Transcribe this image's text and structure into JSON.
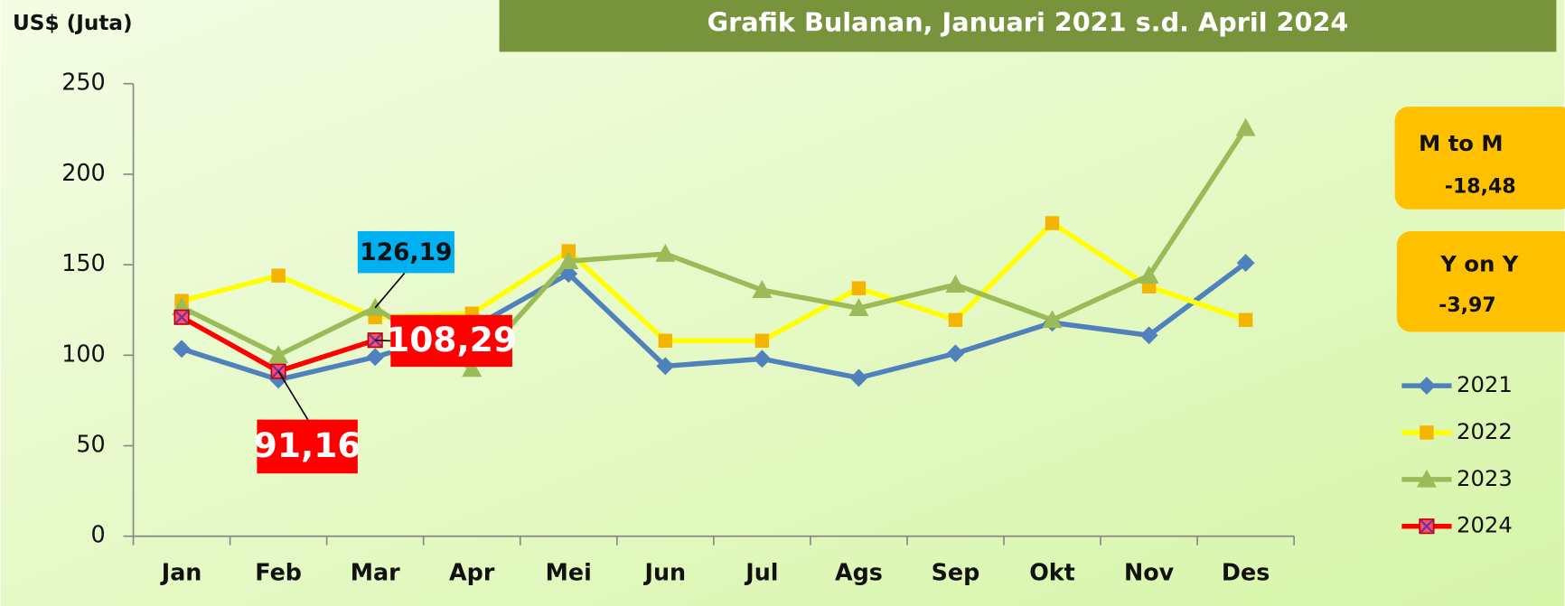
{
  "chart_data": {
    "type": "line",
    "title": "Grafik Bulanan, Januari 2021 s.d. April 2024",
    "y_label": "US$ (Juta)",
    "categories": [
      "Jan",
      "Feb",
      "Mar",
      "Apr",
      "Mei",
      "Jun",
      "Jul",
      "Ags",
      "Sep",
      "Okt",
      "Nov",
      "Des"
    ],
    "series": [
      {
        "name": "2021",
        "color": "#4f81bd",
        "marker": "diamond",
        "values": [
          103.5,
          86.5,
          99,
          115,
          145,
          94,
          98,
          87.5,
          101,
          118,
          111,
          151
        ]
      },
      {
        "name": "2022",
        "color": "#ffff00",
        "marker_color": "#f5b400",
        "marker": "square",
        "values": [
          130,
          144,
          121,
          123,
          157.5,
          108,
          108,
          137,
          119.5,
          173,
          138,
          119.5
        ]
      },
      {
        "name": "2023",
        "color": "#9bbb59",
        "marker": "triangle",
        "values": [
          126.5,
          100,
          126.19,
          92.5,
          152,
          156,
          136,
          126,
          139,
          119.5,
          144,
          225.5
        ],
        "value_labels": [
          null,
          null,
          "126,19",
          null,
          null,
          null,
          null,
          null,
          null,
          null,
          null,
          null
        ]
      },
      {
        "name": "2024",
        "color": "#ff0000",
        "marker": "xsquare",
        "values": [
          121,
          91.16,
          108.29,
          null,
          null,
          null,
          null,
          null,
          null,
          null,
          null,
          null
        ],
        "value_labels": [
          null,
          "91,16",
          "108,29",
          null,
          null,
          null,
          null,
          null,
          null,
          null,
          null,
          null
        ]
      }
    ],
    "ylim": [
      0,
      250
    ],
    "yticks": [
      0,
      50,
      100,
      150,
      200,
      250
    ],
    "annotations": [
      {
        "label": "M to M",
        "value": "-18,48"
      },
      {
        "label": "Y on Y",
        "value": "-3,97"
      }
    ]
  }
}
